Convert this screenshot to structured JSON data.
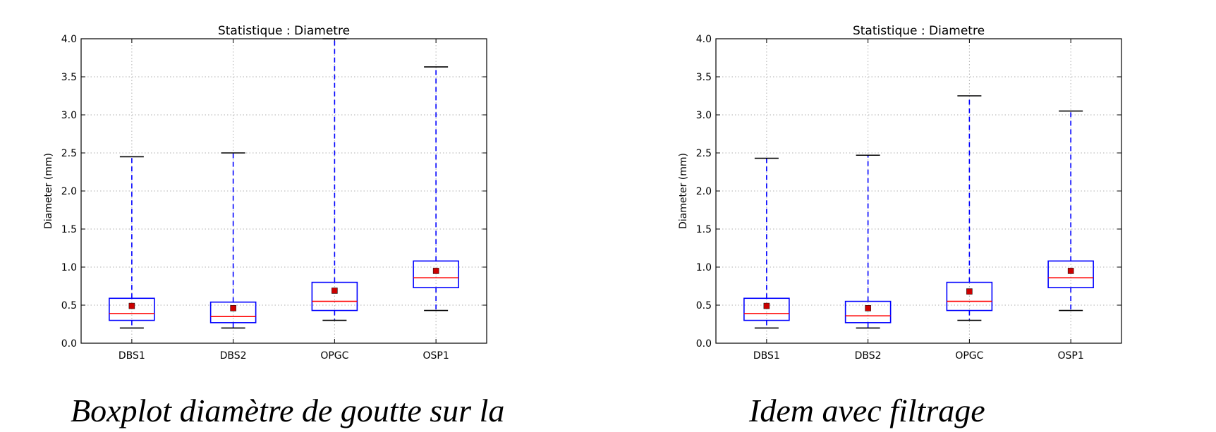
{
  "captions": {
    "left": "Boxplot diamètre de goutte sur la",
    "right": "Idem avec filtrage"
  },
  "colors": {
    "box": "#0000ff",
    "median": "#ff0000",
    "mean_marker": "#cc0000",
    "cap": "#000000",
    "grid": "#b0b0b0"
  },
  "chart_data": [
    {
      "type": "box",
      "title": "Statistique : Diametre",
      "xlabel": "",
      "ylabel": "Diameter (mm)",
      "ylim": [
        0.0,
        4.0
      ],
      "yticks": [
        "0.0",
        "0.5",
        "1.0",
        "1.5",
        "2.0",
        "2.5",
        "3.0",
        "3.5",
        "4.0"
      ],
      "grid": true,
      "categories": [
        "DBS1",
        "DBS2",
        "OPGC",
        "OSP1"
      ],
      "boxes": [
        {
          "whisker_low": 0.2,
          "q1": 0.3,
          "median": 0.39,
          "q3": 0.59,
          "whisker_high": 2.45,
          "mean": 0.49
        },
        {
          "whisker_low": 0.2,
          "q1": 0.27,
          "median": 0.35,
          "q3": 0.54,
          "whisker_high": 2.5,
          "mean": 0.46
        },
        {
          "whisker_low": 0.3,
          "q1": 0.43,
          "median": 0.55,
          "q3": 0.8,
          "whisker_high": 4.0,
          "mean": 0.69
        },
        {
          "whisker_low": 0.43,
          "q1": 0.73,
          "median": 0.86,
          "q3": 1.08,
          "whisker_high": 3.63,
          "mean": 0.95
        }
      ]
    },
    {
      "type": "box",
      "title": "Statistique : Diametre",
      "xlabel": "",
      "ylabel": "Diameter (mm)",
      "ylim": [
        0.0,
        4.0
      ],
      "yticks": [
        "0.0",
        "0.5",
        "1.0",
        "1.5",
        "2.0",
        "2.5",
        "3.0",
        "3.5",
        "4.0"
      ],
      "grid": true,
      "categories": [
        "DBS1",
        "DBS2",
        "OPGC",
        "OSP1"
      ],
      "boxes": [
        {
          "whisker_low": 0.2,
          "q1": 0.3,
          "median": 0.39,
          "q3": 0.59,
          "whisker_high": 2.43,
          "mean": 0.49
        },
        {
          "whisker_low": 0.2,
          "q1": 0.27,
          "median": 0.36,
          "q3": 0.55,
          "whisker_high": 2.47,
          "mean": 0.46
        },
        {
          "whisker_low": 0.3,
          "q1": 0.43,
          "median": 0.55,
          "q3": 0.8,
          "whisker_high": 3.25,
          "mean": 0.68
        },
        {
          "whisker_low": 0.43,
          "q1": 0.73,
          "median": 0.86,
          "q3": 1.08,
          "whisker_high": 3.05,
          "mean": 0.95
        }
      ]
    }
  ]
}
